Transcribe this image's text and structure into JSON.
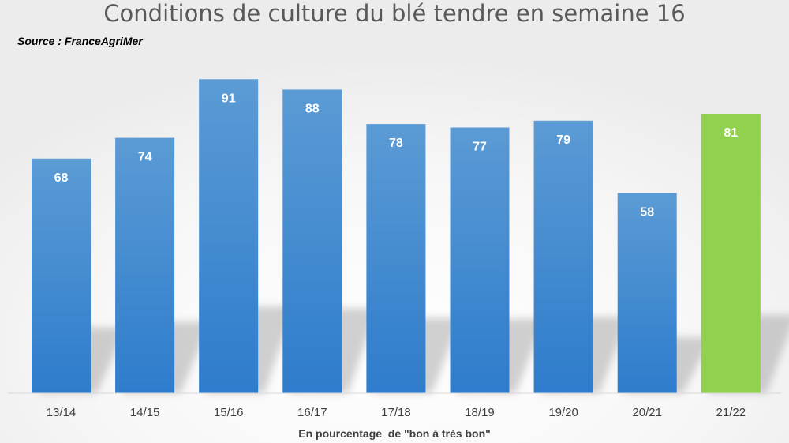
{
  "chart_data": {
    "type": "bar",
    "title": "Conditions de culture du blé tendre en semaine 16",
    "subtitle": "Source : FranceAgriMer",
    "xlabel": "En pourcentage  de \"bon à très bon\"",
    "ylabel": "",
    "categories": [
      "13/14",
      "14/15",
      "15/16",
      "16/17",
      "17/18",
      "18/19",
      "19/20",
      "20/21",
      "21/22"
    ],
    "series": [
      {
        "values": [
          68,
          74,
          91,
          88,
          78,
          77,
          79,
          58,
          81
        ]
      }
    ],
    "ylim": [
      0,
      100
    ],
    "grid": false,
    "legend": "none",
    "colors": {
      "bar": "#4a8fd3",
      "bar_top": "#5b9bd5",
      "bar_bottom": "#2e7ccc",
      "highlight": "#92d050",
      "highlight_category": "21/22",
      "axis": "#d9d9d9",
      "text": "#595959"
    }
  }
}
